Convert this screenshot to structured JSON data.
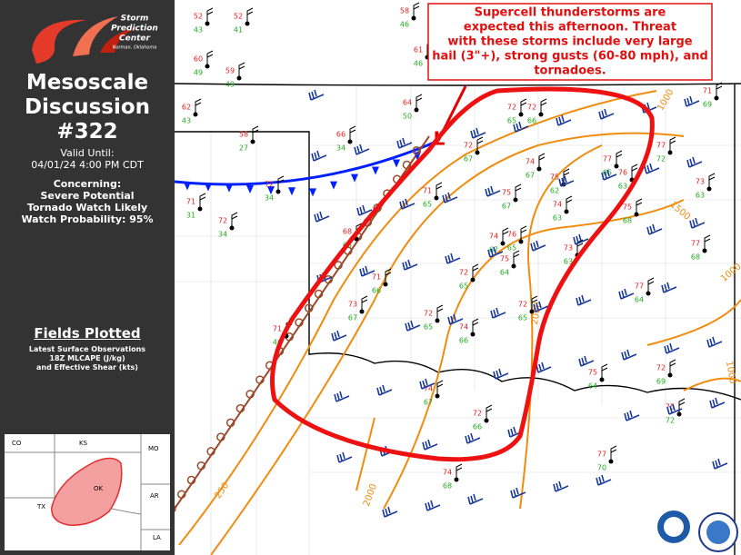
{
  "logo": {
    "lines": [
      "Storm",
      "Prediction",
      "Center"
    ],
    "place": "Norman, Oklahoma"
  },
  "header": {
    "title_line1": "Mesoscale",
    "title_line2": "Discussion",
    "number": "#322",
    "valid_label": "Valid Until:",
    "valid_until": "04/01/24 4:00 PM CDT",
    "concerning_label": "Concerning:",
    "concerning": [
      "Severe Potential",
      "Tornado Watch Likely"
    ],
    "watch_probability": "Watch Probability: 95%"
  },
  "fields": {
    "title": "Fields Plotted",
    "items": [
      "Latest Surface Observations",
      "18Z MLCAPE (J/kg)",
      "and Effective Shear (kts)"
    ]
  },
  "inset": {
    "labels": [
      "CO",
      "KS",
      "MO",
      "TX",
      "OK",
      "AR",
      "LA"
    ]
  },
  "callout": {
    "lines": [
      "Supercell thunderstorms are",
      "expected this afternoon. Threat",
      "with these storms include very large",
      "hail (3\"+), strong gusts (60-80 mph), and",
      "tornadoes."
    ]
  },
  "contour_labels": [
    "1000",
    "250",
    "2000",
    "1000",
    "1500",
    "2000",
    "1000"
  ],
  "stations": [
    {
      "t": "52",
      "d": "43"
    },
    {
      "t": "52",
      "d": "41"
    },
    {
      "t": "60",
      "d": "49"
    },
    {
      "t": "59",
      "d": "49"
    },
    {
      "t": "58",
      "d": "46"
    },
    {
      "t": "61",
      "d": "46"
    },
    {
      "t": "62",
      "d": "43"
    },
    {
      "t": "58",
      "d": "27"
    },
    {
      "t": "66",
      "d": "34"
    },
    {
      "t": "64",
      "d": "50"
    },
    {
      "t": "71",
      "d": "31"
    },
    {
      "t": "72",
      "d": "34"
    },
    {
      "t": "72",
      "d": "34"
    },
    {
      "t": "71",
      "d": "46"
    },
    {
      "t": "68",
      "d": "65"
    },
    {
      "t": "71",
      "d": "66"
    },
    {
      "t": "73",
      "d": "67"
    },
    {
      "t": "71",
      "d": "65"
    },
    {
      "t": "72",
      "d": "67"
    },
    {
      "t": "72",
      "d": "65"
    },
    {
      "t": "72",
      "d": "66"
    },
    {
      "t": "75",
      "d": "67"
    },
    {
      "t": "74",
      "d": "67"
    },
    {
      "t": "75",
      "d": "62"
    },
    {
      "t": "74",
      "d": "63"
    },
    {
      "t": "74",
      "d": "67"
    },
    {
      "t": "75",
      "d": "64"
    },
    {
      "t": "76",
      "d": "65"
    },
    {
      "t": "73",
      "d": "63"
    },
    {
      "t": "72",
      "d": "65"
    },
    {
      "t": "72",
      "d": "65"
    },
    {
      "t": "74",
      "d": "66"
    },
    {
      "t": "72",
      "d": "65"
    },
    {
      "t": "74",
      "d": "67"
    },
    {
      "t": "72",
      "d": "66"
    },
    {
      "t": "75",
      "d": "64"
    },
    {
      "t": "72",
      "d": "69"
    },
    {
      "t": "75",
      "d": "72"
    },
    {
      "t": "77",
      "d": "65"
    },
    {
      "t": "76",
      "d": "63"
    },
    {
      "t": "77",
      "d": "72"
    },
    {
      "t": "73",
      "d": "63"
    },
    {
      "t": "75",
      "d": "68"
    },
    {
      "t": "77",
      "d": "68"
    },
    {
      "t": "77",
      "d": "64"
    },
    {
      "t": "71",
      "d": "69"
    },
    {
      "t": "74",
      "d": "68"
    },
    {
      "t": "77",
      "d": "70"
    }
  ]
}
